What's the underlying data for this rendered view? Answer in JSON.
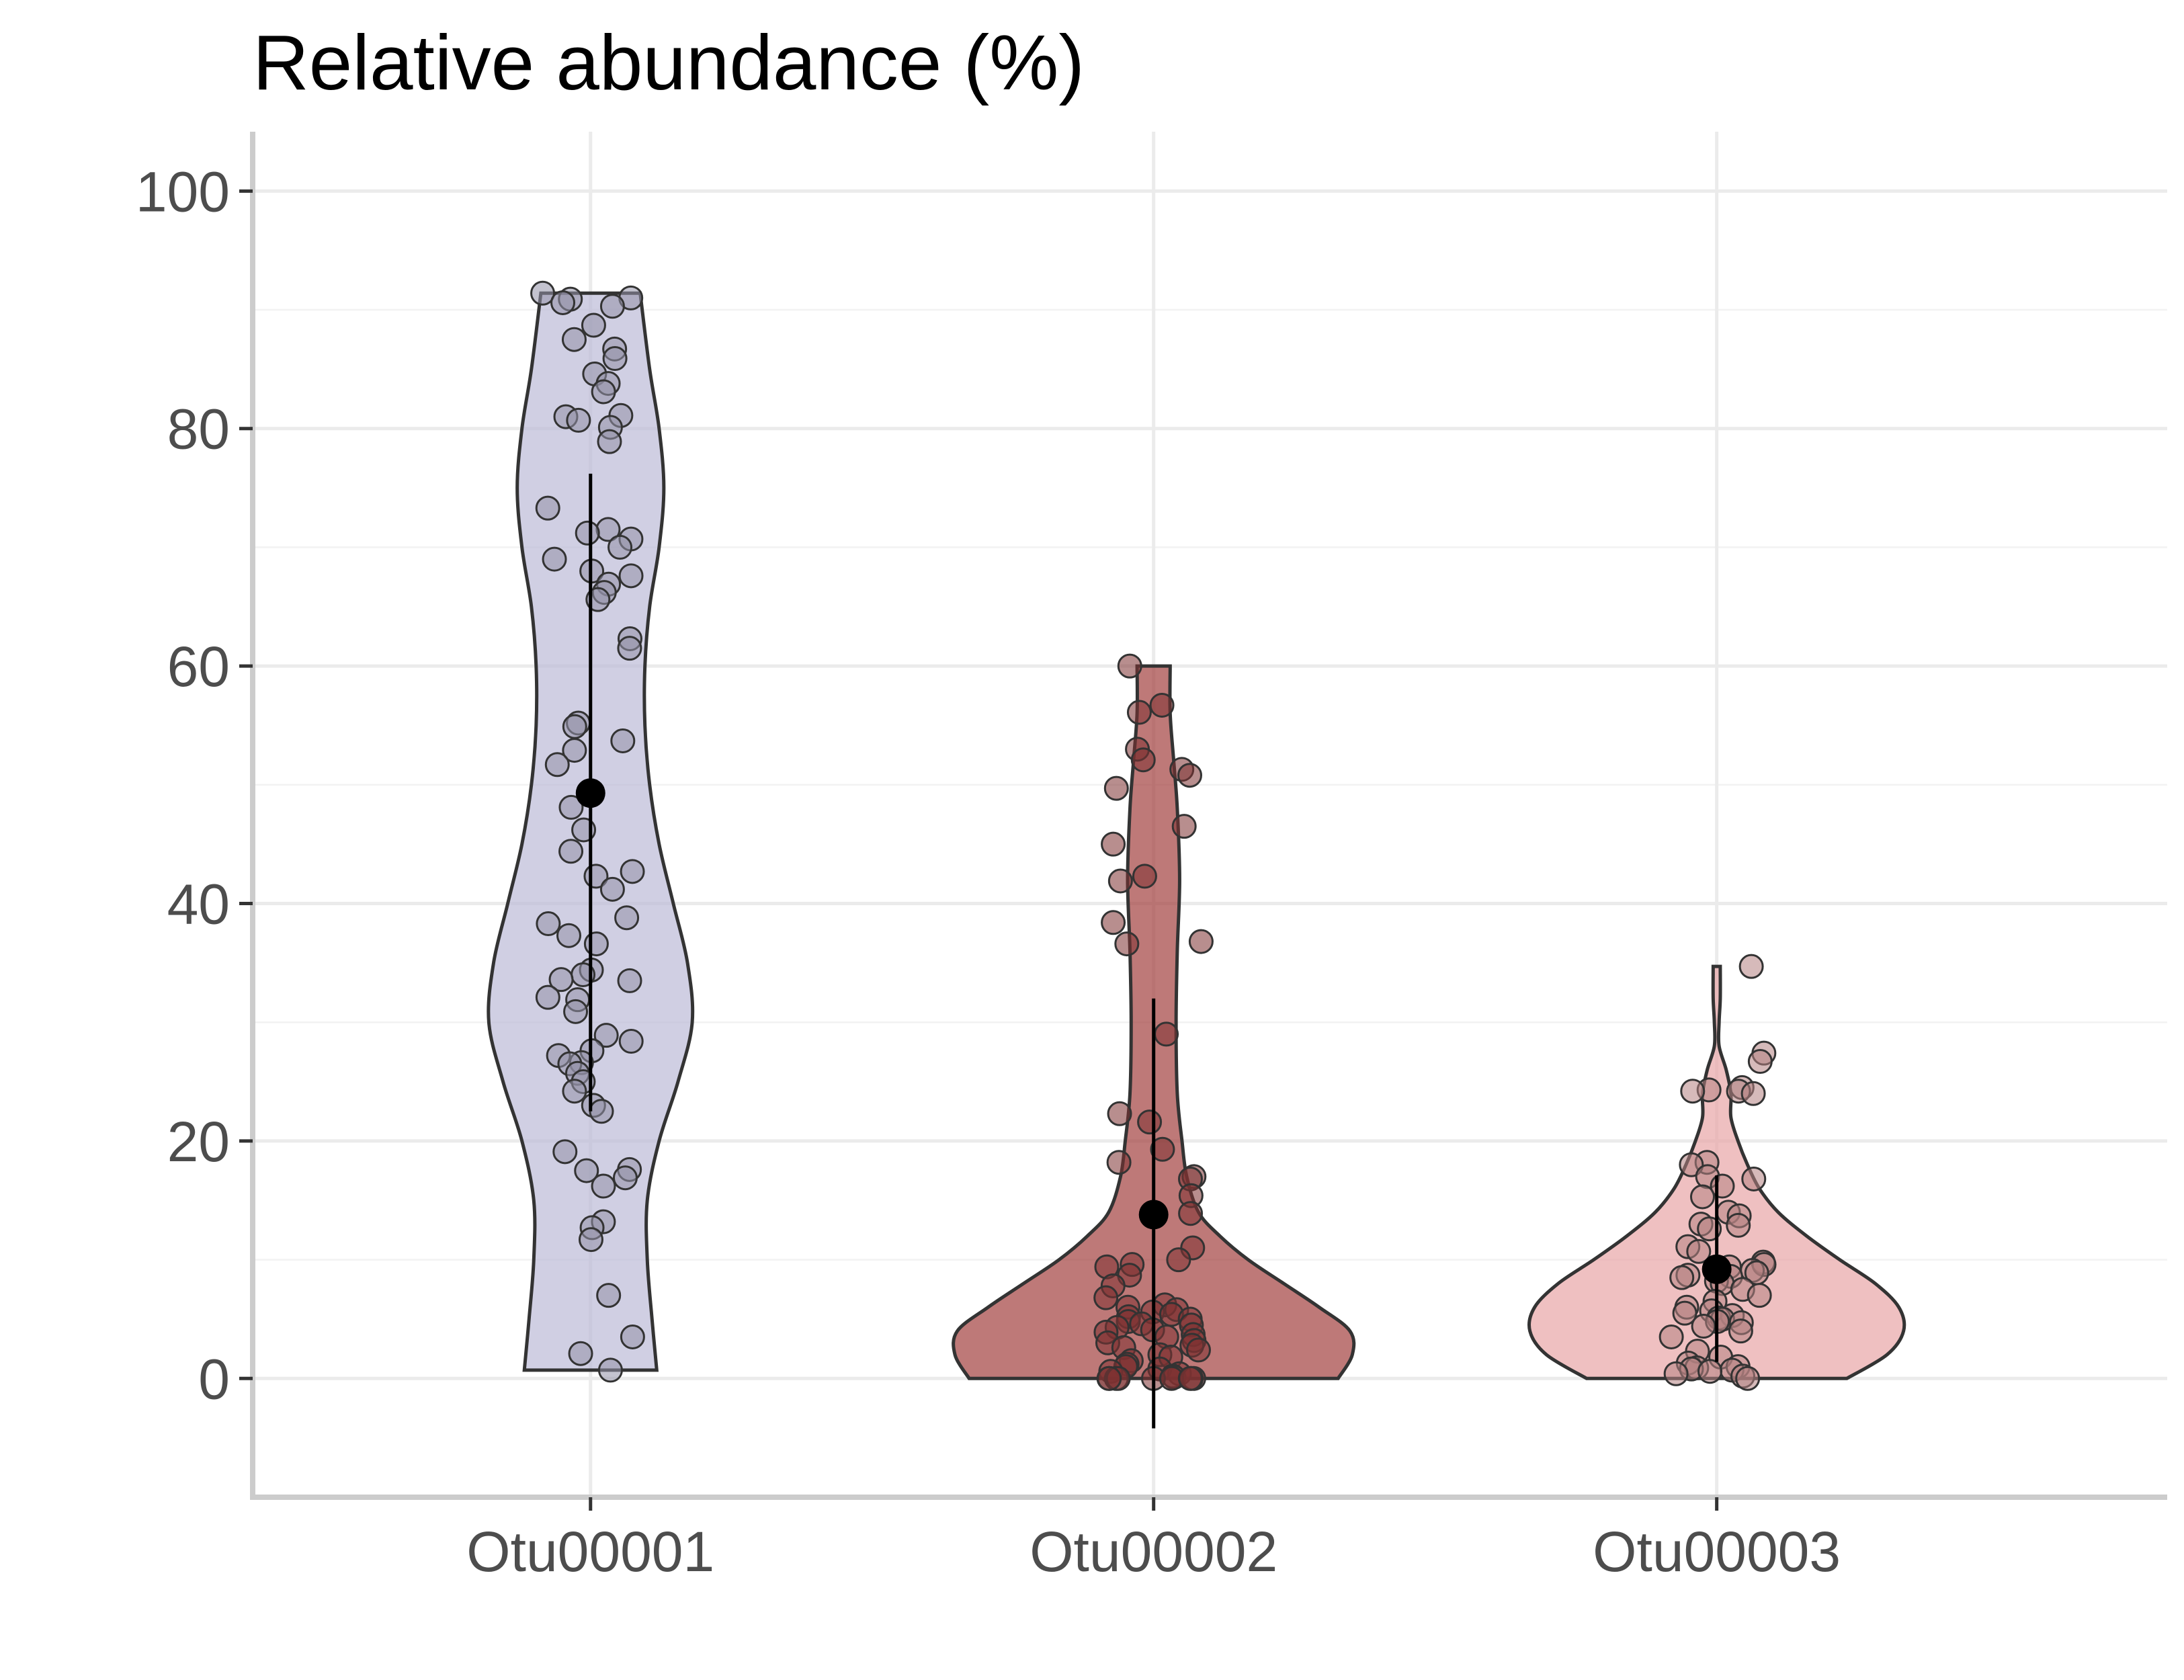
{
  "chart_data": {
    "type": "violin",
    "title": "Relative abundance (%)",
    "xlabel": "",
    "ylabel": "",
    "ylim": [
      -10,
      105
    ],
    "y_ticks": [
      0,
      20,
      40,
      60,
      80,
      100
    ],
    "grid": true,
    "legend": "none",
    "categories": [
      "Otu00001",
      "Otu00002",
      "Otu00003"
    ],
    "series": [
      {
        "category": "Otu00001",
        "color": "#bcbad7",
        "mean": 49.3,
        "sd_low": 22.5,
        "sd_high": 76.2,
        "min": 0.7,
        "max": 91.4,
        "points": [
          91.4,
          91.0,
          90.9,
          90.6,
          90.3,
          88.7,
          87.5,
          86.7,
          85.9,
          84.6,
          83.8,
          83.1,
          81.1,
          81.0,
          80.7,
          80.1,
          78.9,
          73.3,
          71.5,
          71.2,
          70.7,
          70.0,
          69.0,
          68.0,
          67.6,
          66.9,
          66.2,
          65.6,
          62.3,
          61.5,
          55.2,
          54.9,
          53.7,
          52.9,
          51.7,
          48.1,
          46.2,
          44.4,
          42.7,
          42.3,
          41.2,
          38.8,
          38.3,
          37.3,
          36.6,
          34.4,
          34.0,
          33.6,
          33.5,
          32.1,
          31.9,
          30.9,
          28.9,
          28.4,
          27.6,
          27.2,
          26.6,
          26.5,
          25.7,
          25.0,
          24.2,
          23.0,
          22.5,
          19.1,
          17.6,
          17.5,
          16.9,
          16.2,
          13.2,
          12.7,
          11.7,
          7.0,
          3.5,
          2.1,
          0.7
        ],
        "density": [
          [
            0.7,
            0.28
          ],
          [
            5,
            0.26
          ],
          [
            10,
            0.24
          ],
          [
            15,
            0.24
          ],
          [
            20,
            0.29
          ],
          [
            25,
            0.37
          ],
          [
            30,
            0.43
          ],
          [
            35,
            0.41
          ],
          [
            40,
            0.35
          ],
          [
            45,
            0.29
          ],
          [
            50,
            0.25
          ],
          [
            55,
            0.23
          ],
          [
            60,
            0.23
          ],
          [
            65,
            0.25
          ],
          [
            70,
            0.29
          ],
          [
            75,
            0.31
          ],
          [
            80,
            0.29
          ],
          [
            85,
            0.25
          ],
          [
            91.4,
            0.21
          ]
        ]
      },
      {
        "category": "Otu00002",
        "color": "#a2403f",
        "mean": 13.8,
        "sd_low": -4.2,
        "sd_high": 32.0,
        "min": 0,
        "max": 60.0,
        "points": [
          60.0,
          56.7,
          56.1,
          53.0,
          52.1,
          51.3,
          50.8,
          49.7,
          46.5,
          45.0,
          42.3,
          41.9,
          38.4,
          36.8,
          36.6,
          29.0,
          22.3,
          21.6,
          19.3,
          18.2,
          17.0,
          16.8,
          15.4,
          13.9,
          11.0,
          10.0,
          9.6,
          9.4,
          8.7,
          7.8,
          6.8,
          6.2,
          6.0,
          5.8,
          5.6,
          5.4,
          5.2,
          5.0,
          4.8,
          4.6,
          4.5,
          4.3,
          4.1,
          3.9,
          3.7,
          3.5,
          3.2,
          3.0,
          2.8,
          2.6,
          2.4,
          2.0,
          1.8,
          1.5,
          1.2,
          1.0,
          0.8,
          0.6,
          0.4,
          0.2,
          0.1,
          0.0,
          0.0,
          0.0,
          0.0,
          0.0,
          0.0,
          0.0,
          0.0,
          0.0
        ],
        "density": [
          [
            0,
            0.78
          ],
          [
            2,
            0.84
          ],
          [
            4,
            0.83
          ],
          [
            6,
            0.7
          ],
          [
            8,
            0.55
          ],
          [
            10,
            0.4
          ],
          [
            12,
            0.28
          ],
          [
            14,
            0.19
          ],
          [
            17,
            0.14
          ],
          [
            20,
            0.12
          ],
          [
            24,
            0.1
          ],
          [
            30,
            0.095
          ],
          [
            36,
            0.1
          ],
          [
            42,
            0.11
          ],
          [
            48,
            0.1
          ],
          [
            52,
            0.085
          ],
          [
            56,
            0.07
          ],
          [
            60,
            0.07
          ]
        ]
      },
      {
        "category": "Otu00003",
        "color": "#e8a5a6",
        "mean": 9.2,
        "sd_low": 1.4,
        "sd_high": 17.1,
        "min": 0,
        "max": 34.7,
        "points": [
          34.7,
          27.4,
          26.7,
          24.5,
          24.3,
          24.2,
          24.2,
          24.0,
          18.2,
          18.0,
          17.0,
          16.8,
          16.2,
          15.3,
          14.0,
          13.7,
          13.0,
          12.9,
          12.6,
          11.1,
          10.7,
          9.8,
          9.6,
          9.4,
          9.1,
          8.9,
          8.7,
          8.6,
          8.5,
          8.2,
          8.0,
          7.5,
          7.0,
          6.5,
          6.0,
          5.7,
          5.5,
          5.3,
          5.1,
          5.0,
          4.8,
          4.7,
          4.4,
          4.0,
          3.5,
          2.3,
          1.8,
          1.3,
          1.0,
          0.9,
          0.8,
          0.7,
          0.6,
          0.4,
          0.2,
          0.0
        ],
        "density": [
          [
            0,
            0.55
          ],
          [
            2,
            0.72
          ],
          [
            4,
            0.79
          ],
          [
            6,
            0.77
          ],
          [
            8,
            0.67
          ],
          [
            10,
            0.52
          ],
          [
            12,
            0.38
          ],
          [
            14,
            0.26
          ],
          [
            16,
            0.18
          ],
          [
            18,
            0.13
          ],
          [
            20,
            0.09
          ],
          [
            22,
            0.06
          ],
          [
            24,
            0.06
          ],
          [
            26,
            0.04
          ],
          [
            28,
            0.01
          ],
          [
            30,
            0.01
          ],
          [
            32,
            0.015
          ],
          [
            34.7,
            0.015
          ]
        ]
      }
    ]
  }
}
